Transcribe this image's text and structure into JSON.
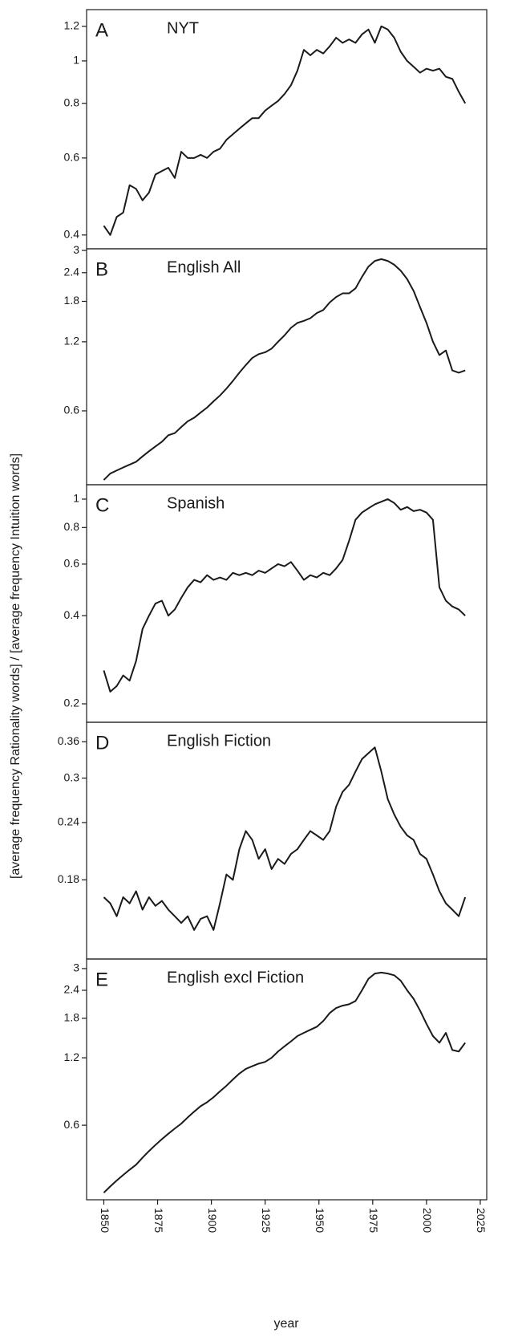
{
  "axes": {
    "x_label": "year",
    "y_label": "[average frequency Rationality words] / [average frequency Intuition words]",
    "xlim": [
      1842,
      2028
    ],
    "xticks": [
      1850,
      1875,
      1900,
      1925,
      1950,
      1975,
      2000,
      2025
    ]
  },
  "chart_data": [
    {
      "type": "line",
      "letter": "A",
      "title": "NYT",
      "color": "#1a1a1a",
      "log_scale": true,
      "ylim": [
        0.372,
        1.31
      ],
      "yticks": [
        0.4,
        0.6,
        0.8,
        1.0,
        1.2
      ],
      "x": [
        1850,
        1853,
        1856,
        1859,
        1862,
        1865,
        1868,
        1871,
        1874,
        1877,
        1880,
        1883,
        1886,
        1889,
        1892,
        1895,
        1898,
        1901,
        1904,
        1907,
        1910,
        1913,
        1916,
        1919,
        1922,
        1925,
        1928,
        1931,
        1934,
        1937,
        1940,
        1943,
        1946,
        1949,
        1952,
        1955,
        1958,
        1961,
        1964,
        1967,
        1970,
        1973,
        1976,
        1979,
        1982,
        1985,
        1988,
        1991,
        1994,
        1997,
        2000,
        2003,
        2006,
        2009,
        2012,
        2015,
        2018
      ],
      "values": [
        0.42,
        0.4,
        0.44,
        0.45,
        0.52,
        0.51,
        0.48,
        0.5,
        0.55,
        0.56,
        0.57,
        0.54,
        0.62,
        0.6,
        0.6,
        0.61,
        0.6,
        0.62,
        0.63,
        0.66,
        0.68,
        0.7,
        0.72,
        0.74,
        0.74,
        0.77,
        0.79,
        0.81,
        0.84,
        0.88,
        0.95,
        1.06,
        1.03,
        1.06,
        1.04,
        1.08,
        1.13,
        1.1,
        1.12,
        1.1,
        1.15,
        1.18,
        1.1,
        1.2,
        1.18,
        1.13,
        1.05,
        1.0,
        0.97,
        0.94,
        0.96,
        0.95,
        0.96,
        0.92,
        0.91,
        0.85,
        0.8
      ]
    },
    {
      "type": "line",
      "letter": "B",
      "title": "English All",
      "color": "#1a1a1a",
      "log_scale": true,
      "ylim": [
        0.286,
        3.05
      ],
      "yticks": [
        0.6,
        1.2,
        1.8,
        2.4,
        3.0
      ],
      "x": [
        1850,
        1853,
        1856,
        1859,
        1862,
        1865,
        1868,
        1871,
        1874,
        1877,
        1880,
        1883,
        1886,
        1889,
        1892,
        1895,
        1898,
        1901,
        1904,
        1907,
        1910,
        1913,
        1916,
        1919,
        1922,
        1925,
        1928,
        1931,
        1934,
        1937,
        1940,
        1943,
        1946,
        1949,
        1952,
        1955,
        1958,
        1961,
        1964,
        1967,
        1970,
        1973,
        1976,
        1979,
        1982,
        1985,
        1988,
        1991,
        1994,
        1997,
        2000,
        2003,
        2006,
        2009,
        2012,
        2015,
        2018
      ],
      "values": [
        0.3,
        0.32,
        0.33,
        0.34,
        0.35,
        0.36,
        0.38,
        0.4,
        0.42,
        0.44,
        0.47,
        0.48,
        0.51,
        0.54,
        0.56,
        0.59,
        0.62,
        0.66,
        0.7,
        0.75,
        0.81,
        0.88,
        0.95,
        1.02,
        1.06,
        1.08,
        1.12,
        1.2,
        1.28,
        1.38,
        1.45,
        1.48,
        1.52,
        1.6,
        1.65,
        1.78,
        1.88,
        1.95,
        1.95,
        2.05,
        2.3,
        2.55,
        2.7,
        2.75,
        2.7,
        2.6,
        2.45,
        2.25,
        2.0,
        1.7,
        1.45,
        1.2,
        1.05,
        1.1,
        0.9,
        0.88,
        0.9
      ]
    },
    {
      "type": "line",
      "letter": "C",
      "title": "Spanish",
      "color": "#1a1a1a",
      "log_scale": true,
      "ylim": [
        0.173,
        1.12
      ],
      "yticks": [
        0.2,
        0.4,
        0.6,
        0.8,
        1.0
      ],
      "x": [
        1850,
        1853,
        1856,
        1859,
        1862,
        1865,
        1868,
        1871,
        1874,
        1877,
        1880,
        1883,
        1886,
        1889,
        1892,
        1895,
        1898,
        1901,
        1904,
        1907,
        1910,
        1913,
        1916,
        1919,
        1922,
        1925,
        1928,
        1931,
        1934,
        1937,
        1940,
        1943,
        1946,
        1949,
        1952,
        1955,
        1958,
        1961,
        1964,
        1967,
        1970,
        1973,
        1976,
        1979,
        1982,
        1985,
        1988,
        1991,
        1994,
        1997,
        2000,
        2003,
        2006,
        2009,
        2012,
        2015,
        2018
      ],
      "values": [
        0.26,
        0.22,
        0.23,
        0.25,
        0.24,
        0.28,
        0.36,
        0.4,
        0.44,
        0.45,
        0.4,
        0.42,
        0.46,
        0.5,
        0.53,
        0.52,
        0.55,
        0.53,
        0.54,
        0.53,
        0.56,
        0.55,
        0.56,
        0.55,
        0.57,
        0.56,
        0.58,
        0.6,
        0.59,
        0.61,
        0.57,
        0.53,
        0.55,
        0.54,
        0.56,
        0.55,
        0.58,
        0.62,
        0.72,
        0.85,
        0.9,
        0.93,
        0.96,
        0.98,
        1.0,
        0.97,
        0.92,
        0.94,
        0.91,
        0.92,
        0.9,
        0.85,
        0.5,
        0.45,
        0.43,
        0.42,
        0.4
      ]
    },
    {
      "type": "line",
      "letter": "D",
      "title": "English Fiction",
      "color": "#1a1a1a",
      "log_scale": true,
      "ylim": [
        0.121,
        0.397
      ],
      "yticks": [
        0.18,
        0.24,
        0.3,
        0.36
      ],
      "x": [
        1850,
        1853,
        1856,
        1859,
        1862,
        1865,
        1868,
        1871,
        1874,
        1877,
        1880,
        1883,
        1886,
        1889,
        1892,
        1895,
        1898,
        1901,
        1904,
        1907,
        1910,
        1913,
        1916,
        1919,
        1922,
        1925,
        1928,
        1931,
        1934,
        1937,
        1940,
        1943,
        1946,
        1949,
        1952,
        1955,
        1958,
        1961,
        1964,
        1967,
        1970,
        1973,
        1976,
        1979,
        1982,
        1985,
        1988,
        1991,
        1994,
        1997,
        2000,
        2003,
        2006,
        2009,
        2012,
        2015,
        2018
      ],
      "values": [
        0.165,
        0.16,
        0.15,
        0.165,
        0.16,
        0.17,
        0.155,
        0.165,
        0.158,
        0.162,
        0.155,
        0.15,
        0.145,
        0.15,
        0.14,
        0.148,
        0.15,
        0.14,
        0.16,
        0.185,
        0.18,
        0.21,
        0.23,
        0.22,
        0.2,
        0.21,
        0.19,
        0.2,
        0.195,
        0.205,
        0.21,
        0.22,
        0.23,
        0.225,
        0.22,
        0.23,
        0.26,
        0.28,
        0.29,
        0.31,
        0.33,
        0.34,
        0.35,
        0.31,
        0.27,
        0.25,
        0.235,
        0.225,
        0.22,
        0.205,
        0.2,
        0.185,
        0.17,
        0.16,
        0.155,
        0.15,
        0.165
      ]
    },
    {
      "type": "line",
      "letter": "E",
      "title": "English excl Fiction",
      "color": "#1a1a1a",
      "log_scale": true,
      "ylim": [
        0.279,
        3.31
      ],
      "yticks": [
        0.6,
        1.2,
        1.8,
        2.4,
        3.0
      ],
      "x": [
        1850,
        1853,
        1856,
        1859,
        1862,
        1865,
        1868,
        1871,
        1874,
        1877,
        1880,
        1883,
        1886,
        1889,
        1892,
        1895,
        1898,
        1901,
        1904,
        1907,
        1910,
        1913,
        1916,
        1919,
        1922,
        1925,
        1928,
        1931,
        1934,
        1937,
        1940,
        1943,
        1946,
        1949,
        1952,
        1955,
        1958,
        1961,
        1964,
        1967,
        1970,
        1973,
        1976,
        1979,
        1982,
        1985,
        1988,
        1991,
        1994,
        1997,
        2000,
        2003,
        2006,
        2009,
        2012,
        2015,
        2018
      ],
      "values": [
        0.3,
        0.32,
        0.34,
        0.36,
        0.38,
        0.4,
        0.43,
        0.46,
        0.49,
        0.52,
        0.55,
        0.58,
        0.61,
        0.65,
        0.69,
        0.73,
        0.76,
        0.8,
        0.85,
        0.9,
        0.96,
        1.02,
        1.07,
        1.1,
        1.13,
        1.15,
        1.2,
        1.28,
        1.35,
        1.42,
        1.5,
        1.55,
        1.6,
        1.65,
        1.75,
        1.9,
        2.0,
        2.05,
        2.08,
        2.15,
        2.4,
        2.7,
        2.85,
        2.88,
        2.85,
        2.8,
        2.65,
        2.4,
        2.2,
        1.95,
        1.7,
        1.5,
        1.4,
        1.55,
        1.3,
        1.28,
        1.4
      ]
    }
  ]
}
